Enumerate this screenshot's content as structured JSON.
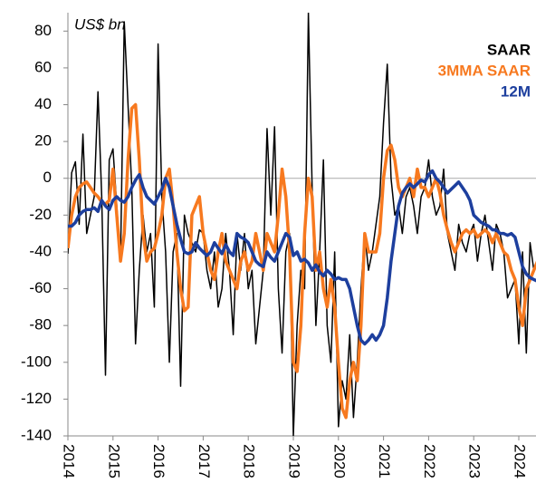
{
  "chart_data": {
    "type": "line",
    "y_unit_label": "US$ bn",
    "categories": [
      "2014",
      null,
      null,
      null,
      null,
      null,
      null,
      null,
      null,
      null,
      null,
      null,
      "2015",
      null,
      null,
      null,
      null,
      null,
      null,
      null,
      null,
      null,
      null,
      null,
      "2016",
      null,
      null,
      null,
      null,
      null,
      null,
      null,
      null,
      null,
      null,
      null,
      "2017",
      null,
      null,
      null,
      null,
      null,
      null,
      null,
      null,
      null,
      null,
      null,
      "2018",
      null,
      null,
      null,
      null,
      null,
      null,
      null,
      null,
      null,
      null,
      null,
      "2019",
      null,
      null,
      null,
      null,
      null,
      null,
      null,
      null,
      null,
      null,
      null,
      "2020",
      null,
      null,
      null,
      null,
      null,
      null,
      null,
      null,
      null,
      null,
      null,
      "2021",
      null,
      null,
      null,
      null,
      null,
      null,
      null,
      null,
      null,
      null,
      null,
      "2022",
      null,
      null,
      null,
      null,
      null,
      null,
      null,
      null,
      null,
      null,
      null,
      "2023",
      null,
      null,
      null,
      null,
      null,
      null,
      null,
      null,
      null,
      null,
      null,
      "2024",
      null,
      null,
      null,
      null,
      null
    ],
    "series": [
      {
        "name": "SAAR",
        "color": "#000000",
        "width": 1.5,
        "values": [
          -41,
          3,
          9,
          -25,
          24,
          -30,
          -20,
          -10,
          47,
          -10,
          -107,
          10,
          16,
          -15,
          -45,
          85,
          40,
          -5,
          -90,
          -50,
          -20,
          -40,
          -30,
          -70,
          73,
          -10,
          -40,
          -100,
          -40,
          -30,
          -113,
          -20,
          -30,
          -35,
          -40,
          -28,
          -30,
          -50,
          -60,
          -40,
          -70,
          -60,
          -30,
          -50,
          -85,
          -30,
          -50,
          -30,
          -60,
          -50,
          -90,
          -70,
          -50,
          27,
          -20,
          28,
          -60,
          -95,
          -40,
          -30,
          -140,
          -80,
          -50,
          -60,
          90,
          -5,
          -80,
          -40,
          10,
          -80,
          -100,
          -40,
          -135,
          -110,
          -120,
          -85,
          -130,
          -100,
          -60,
          -30,
          -50,
          -40,
          -25,
          -10,
          30,
          62,
          0,
          -20,
          -15,
          -30,
          -10,
          -5,
          -15,
          -30,
          -10,
          -5,
          10,
          -10,
          -20,
          -15,
          5,
          -30,
          -40,
          -50,
          -25,
          -35,
          -40,
          -30,
          -25,
          -45,
          -30,
          -20,
          -35,
          -50,
          -25,
          -30,
          -40,
          -65,
          -60,
          -55,
          -90,
          -40,
          -95,
          -35,
          -50,
          -45
        ]
      },
      {
        "name": "3MMA SAAR",
        "color": "#f7791f",
        "width": 3.5,
        "values": [
          -38,
          -20,
          -10,
          -5,
          -3,
          -2,
          -5,
          -8,
          -10,
          -13,
          -14,
          -12,
          5,
          -20,
          -45,
          -30,
          10,
          38,
          40,
          10,
          -30,
          -45,
          -40,
          -38,
          -30,
          -20,
          0,
          5,
          -15,
          -40,
          -60,
          -72,
          -70,
          -20,
          -15,
          -10,
          -30,
          -40,
          -50,
          -55,
          -40,
          -30,
          -45,
          -50,
          -55,
          -60,
          -45,
          -40,
          -50,
          -45,
          -30,
          -40,
          -50,
          -30,
          -35,
          -40,
          -20,
          5,
          -10,
          -40,
          -100,
          -105,
          -80,
          -30,
          0,
          -10,
          -50,
          -40,
          -60,
          -70,
          -55,
          -70,
          -100,
          -125,
          -130,
          -110,
          -100,
          -110,
          -80,
          -30,
          -40,
          -40,
          -40,
          -30,
          0,
          15,
          18,
          10,
          -5,
          -10,
          -5,
          0,
          -10,
          5,
          -5,
          -5,
          -10,
          -5,
          0,
          -8,
          -20,
          -28,
          -35,
          -40,
          -35,
          -30,
          -28,
          -30,
          -28,
          -32,
          -30,
          -28,
          -30,
          -35,
          -30,
          -35,
          -40,
          -42,
          -50,
          -55,
          -70,
          -80,
          -60,
          -55,
          -50,
          -45
        ]
      },
      {
        "name": "12M",
        "color": "#1d3f9e",
        "width": 3.5,
        "values": [
          -26,
          -26,
          -24,
          -20,
          -18,
          -17,
          -17,
          -16,
          -18,
          -12,
          -15,
          -17,
          -12,
          -10,
          -12,
          -13,
          -10,
          -5,
          -1,
          2,
          -5,
          -10,
          -12,
          -14,
          -10,
          -6,
          0,
          -5,
          -15,
          -25,
          -33,
          -40,
          -41,
          -40,
          -35,
          -38,
          -40,
          -42,
          -40,
          -35,
          -38,
          -41,
          -36,
          -40,
          -42,
          -30,
          -32,
          -33,
          -35,
          -40,
          -45,
          -47,
          -48,
          -40,
          -43,
          -45,
          -40,
          -35,
          -30,
          -32,
          -42,
          -40,
          -45,
          -44,
          -46,
          -50,
          -47,
          -51,
          -53,
          -50,
          -52,
          -55,
          -54,
          -55,
          -55,
          -60,
          -70,
          -80,
          -88,
          -90,
          -88,
          -85,
          -88,
          -85,
          -80,
          -65,
          -45,
          -30,
          -15,
          -8,
          -5,
          -3,
          -5,
          -3,
          -1,
          -2,
          2,
          4,
          0,
          -2,
          -5,
          -8,
          -6,
          -4,
          -2,
          -5,
          -8,
          -12,
          -20,
          -22,
          -24,
          -25,
          -26,
          -28,
          -28,
          -30,
          -30,
          -31,
          -30,
          -32,
          -40,
          -48,
          -52,
          -54,
          -55,
          -56
        ]
      }
    ],
    "ylim": [
      -140,
      90
    ],
    "yticks": [
      -140,
      -120,
      -100,
      -80,
      -60,
      -40,
      -20,
      0,
      20,
      40,
      60,
      80
    ],
    "legend": "top-right"
  }
}
